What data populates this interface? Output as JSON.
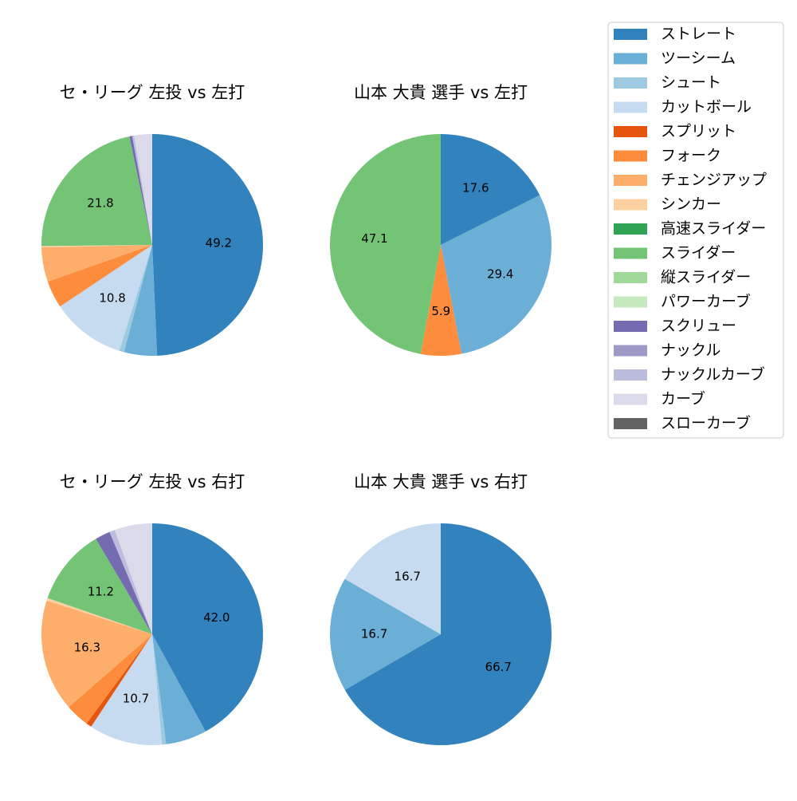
{
  "chart_data": [
    {
      "type": "pie",
      "title": "セ・リーグ 左投 vs 左打",
      "values": [
        49.2,
        4.8,
        0.7,
        10.8,
        0,
        4.0,
        5.0,
        0.2,
        0,
        21.8,
        0,
        0,
        0.4,
        0,
        0.3,
        2.6,
        0
      ],
      "value_labels": [
        "49.2",
        null,
        null,
        "10.8",
        null,
        null,
        null,
        null,
        null,
        "21.8",
        null,
        null,
        null,
        null,
        null,
        null,
        null
      ]
    },
    {
      "type": "pie",
      "title": "山本 大貴 選手 vs 左打",
      "values": [
        17.6,
        29.4,
        0,
        0,
        0,
        5.9,
        0,
        0,
        0,
        47.1,
        0,
        0,
        0,
        0,
        0,
        0,
        0
      ],
      "value_labels": [
        "17.6",
        "29.4",
        null,
        null,
        null,
        "5.9",
        null,
        null,
        null,
        "47.1",
        null,
        null,
        null,
        null,
        null,
        null,
        null
      ]
    },
    {
      "type": "pie",
      "title": "セ・リーグ 左投 vs 右打",
      "values": [
        42.0,
        6.0,
        0.6,
        10.7,
        0.8,
        3.5,
        16.3,
        0.4,
        0,
        11.2,
        0,
        0,
        2.2,
        0,
        0.8,
        5.5,
        0
      ],
      "value_labels": [
        "42.0",
        null,
        null,
        "10.7",
        null,
        null,
        "16.3",
        null,
        null,
        "11.2",
        null,
        null,
        null,
        null,
        null,
        null,
        null
      ]
    },
    {
      "type": "pie",
      "title": "山本 大貴 選手 vs 右打",
      "values": [
        66.7,
        16.7,
        0,
        16.7,
        0,
        0,
        0,
        0,
        0,
        0,
        0,
        0,
        0,
        0,
        0,
        0,
        0
      ],
      "value_labels": [
        "66.7",
        "16.7",
        null,
        "16.7",
        null,
        null,
        null,
        null,
        null,
        null,
        null,
        null,
        null,
        null,
        null,
        null,
        null
      ]
    }
  ],
  "legend": {
    "labels": [
      "ストレート",
      "ツーシーム",
      "シュート",
      "カットボール",
      "スプリット",
      "フォーク",
      "チェンジアップ",
      "シンカー",
      "高速スライダー",
      "スライダー",
      "縦スライダー",
      "パワーカーブ",
      "スクリュー",
      "ナックル",
      "ナックルカーブ",
      "カーブ",
      "スローカーブ"
    ],
    "colors": [
      "#3182bd",
      "#6baed6",
      "#9ecae1",
      "#c6dbef",
      "#e6550d",
      "#fd8d3c",
      "#fdae6b",
      "#fdd0a2",
      "#31a354",
      "#74c476",
      "#a1d99b",
      "#c7e9c0",
      "#756bb1",
      "#9e9ac8",
      "#bcbddc",
      "#dadaeb",
      "#636363"
    ]
  }
}
